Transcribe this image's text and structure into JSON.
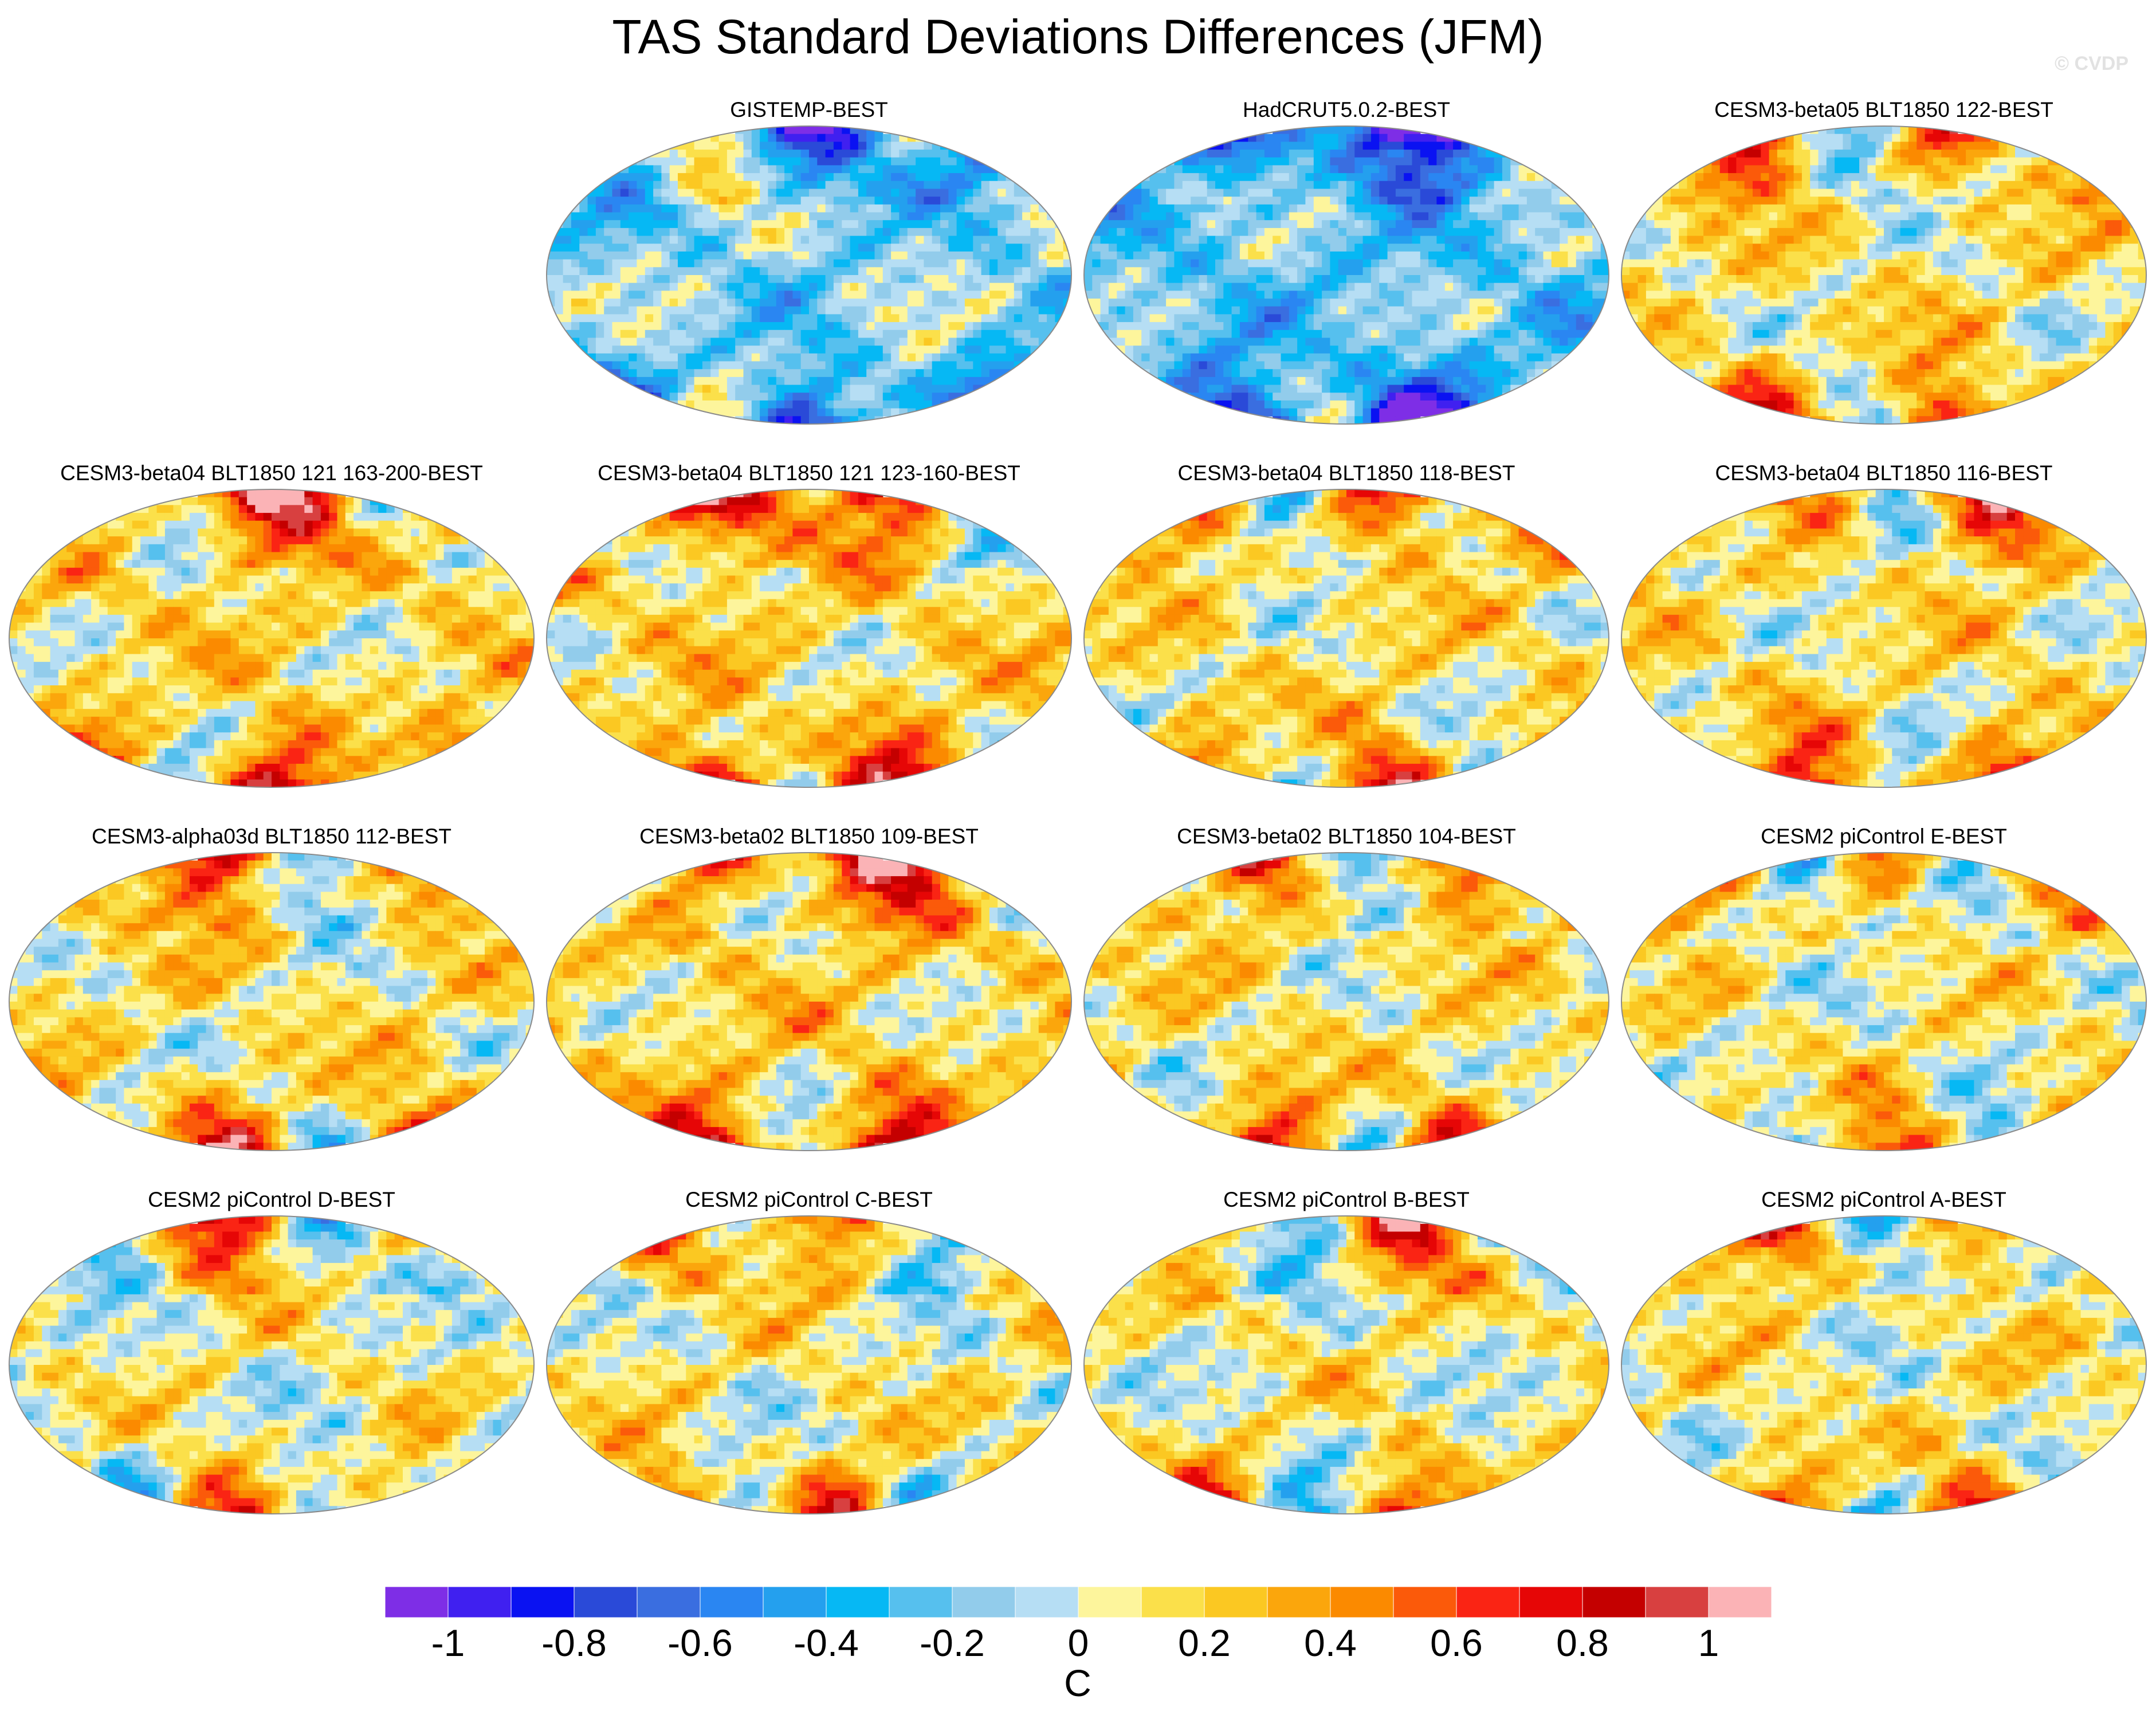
{
  "title": "TAS Standard Deviations Differences (JFM)",
  "watermark": "© CVDP",
  "chart_data": {
    "type": "heatmap",
    "title": "TAS Standard Deviations Differences (JFM)",
    "projection": "Robinson (global map panels)",
    "panels": [
      {
        "label": "GISTEMP-BEST",
        "bias": -0.15,
        "seed": 3
      },
      {
        "label": "HadCRUT5.0.2-BEST",
        "bias": -0.22,
        "seed": 7
      },
      {
        "label": "CESM3-beta05 BLT1850 122-BEST",
        "bias": 0.12,
        "seed": 11
      },
      {
        "label": "CESM3-beta04 BLT1850 121 163-200-BEST",
        "bias": 0.15,
        "seed": 13
      },
      {
        "label": "CESM3-beta04 BLT1850 121 123-160-BEST",
        "bias": 0.16,
        "seed": 17
      },
      {
        "label": "CESM3-beta04 BLT1850 118-BEST",
        "bias": 0.12,
        "seed": 19
      },
      {
        "label": "CESM3-beta04 BLT1850 116-BEST",
        "bias": 0.12,
        "seed": 23
      },
      {
        "label": "CESM3-alpha03d BLT1850 112-BEST",
        "bias": 0.12,
        "seed": 29
      },
      {
        "label": "CESM3-beta02 BLT1850 109-BEST",
        "bias": 0.16,
        "seed": 31
      },
      {
        "label": "CESM3-beta02 BLT1850 104-BEST",
        "bias": 0.12,
        "seed": 37
      },
      {
        "label": "CESM2 piControl E-BEST",
        "bias": 0.08,
        "seed": 41
      },
      {
        "label": "CESM2 piControl D-BEST",
        "bias": 0.06,
        "seed": 43
      },
      {
        "label": "CESM2 piControl C-BEST",
        "bias": 0.08,
        "seed": 47
      },
      {
        "label": "CESM2 piControl B-BEST",
        "bias": 0.07,
        "seed": 53
      },
      {
        "label": "CESM2 piControl A-BEST",
        "bias": 0.09,
        "seed": 59
      }
    ],
    "colorbar": {
      "units": "C",
      "levels": [
        -1.1,
        -1,
        -0.9,
        -0.8,
        -0.7,
        -0.6,
        -0.5,
        -0.4,
        -0.3,
        -0.2,
        -0.1,
        0,
        0.1,
        0.2,
        0.3,
        0.4,
        0.5,
        0.6,
        0.7,
        0.8,
        0.9,
        1,
        1.1
      ],
      "colors": [
        "#7e2ee6",
        "#4020f0",
        "#0a12f2",
        "#2a4ad8",
        "#3a6ee0",
        "#2a86f2",
        "#24a0ee",
        "#06b8f4",
        "#56c0ee",
        "#92cceb",
        "#b6def4",
        "#fdf59c",
        "#fbe04a",
        "#fbc822",
        "#fba60c",
        "#fb8a00",
        "#fb5a0a",
        "#fa2414",
        "#e60606",
        "#c40000",
        "#d84040",
        "#fbb3b6"
      ],
      "tick_labels": [
        "-1",
        "-0.8",
        "-0.6",
        "-0.4",
        "-0.2",
        "0",
        "0.2",
        "0.4",
        "0.6",
        "0.8",
        "1"
      ],
      "tick_values": [
        -1,
        -0.8,
        -0.6,
        -0.4,
        -0.2,
        0,
        0.2,
        0.4,
        0.6,
        0.8,
        1
      ]
    }
  }
}
